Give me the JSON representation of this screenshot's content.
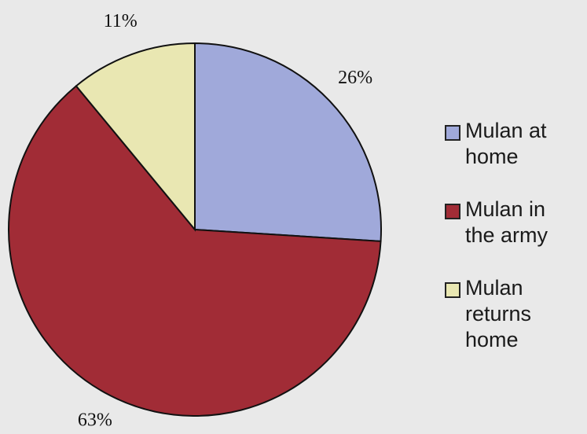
{
  "chart_data": {
    "type": "pie",
    "categories": [
      "Mulan at home",
      "Mulan in the army",
      "Mulan returns home"
    ],
    "values": [
      26,
      63,
      11
    ],
    "value_labels": [
      "26%",
      "63%",
      "11%"
    ],
    "colors": [
      "#a0a9da",
      "#a12c36",
      "#e9e7b2"
    ],
    "legend": "right"
  }
}
